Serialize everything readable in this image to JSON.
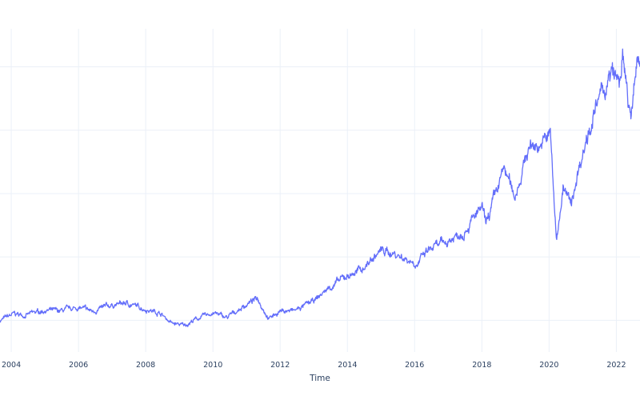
{
  "chart_data": {
    "type": "line",
    "xlabel": "Time",
    "ylabel": "",
    "title": "",
    "x_ticks": [
      "2004",
      "2006",
      "2008",
      "2010",
      "2012",
      "2014",
      "2016",
      "2018",
      "2020",
      "2022"
    ],
    "xlim": [
      "2003-09-01",
      "2022-09-15"
    ],
    "grid": true,
    "series": [
      {
        "name": "",
        "color": "#636efa",
        "points": [
          [
            "2003-09-01",
            100
          ],
          [
            "2004-02-01",
            110
          ],
          [
            "2004-06-01",
            108
          ],
          [
            "2005-01-01",
            116
          ],
          [
            "2005-06-01",
            114
          ],
          [
            "2006-01-01",
            120
          ],
          [
            "2006-06-01",
            114
          ],
          [
            "2007-01-01",
            124
          ],
          [
            "2007-06-01",
            127
          ],
          [
            "2008-01-01",
            118
          ],
          [
            "2008-06-01",
            112
          ],
          [
            "2008-10-15",
            95
          ],
          [
            "2009-03-01",
            92
          ],
          [
            "2009-06-01",
            100
          ],
          [
            "2010-01-01",
            112
          ],
          [
            "2010-06-01",
            104
          ],
          [
            "2011-01-01",
            125
          ],
          [
            "2011-05-01",
            135
          ],
          [
            "2011-09-01",
            103
          ],
          [
            "2012-01-01",
            115
          ],
          [
            "2012-06-01",
            115
          ],
          [
            "2013-01-01",
            130
          ],
          [
            "2013-06-01",
            150
          ],
          [
            "2014-01-01",
            170
          ],
          [
            "2014-06-01",
            180
          ],
          [
            "2015-01-01",
            210
          ],
          [
            "2015-06-01",
            205
          ],
          [
            "2016-02-01",
            190
          ],
          [
            "2016-06-01",
            210
          ],
          [
            "2017-01-01",
            225
          ],
          [
            "2017-06-01",
            240
          ],
          [
            "2018-01-01",
            275
          ],
          [
            "2018-02-15",
            250
          ],
          [
            "2018-09-01",
            340
          ],
          [
            "2018-12-20",
            295
          ],
          [
            "2019-06-01",
            375
          ],
          [
            "2019-11-01",
            380
          ],
          [
            "2020-01-15",
            395
          ],
          [
            "2020-03-20",
            225
          ],
          [
            "2020-06-01",
            310
          ],
          [
            "2020-09-01",
            280
          ],
          [
            "2020-11-01",
            330
          ],
          [
            "2021-03-01",
            400
          ],
          [
            "2021-08-01",
            460
          ],
          [
            "2021-12-01",
            490
          ],
          [
            "2022-02-01",
            470
          ],
          [
            "2022-03-10",
            515
          ],
          [
            "2022-05-15",
            435
          ],
          [
            "2022-06-20",
            420
          ],
          [
            "2022-08-20",
            520
          ],
          [
            "2022-09-15",
            500
          ]
        ]
      }
    ]
  }
}
